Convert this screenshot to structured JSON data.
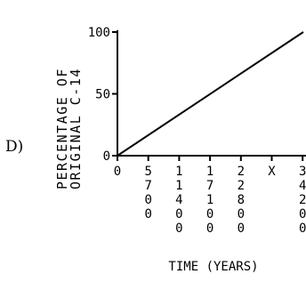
{
  "option_label": "D)",
  "chart_data": {
    "type": "line",
    "title": "",
    "ylabel": [
      "PERCENTAGE OF",
      "ORIGINAL C-14"
    ],
    "xlabel": "TIME (YEARS)",
    "x_tick_labels": [
      "0",
      "5700",
      "11400",
      "17100",
      "22800",
      "X",
      "34200"
    ],
    "y_ticks": [
      0,
      50,
      100
    ],
    "y_tick_labels": [
      "0",
      "50",
      "100"
    ],
    "xlim": [
      0,
      34200
    ],
    "ylim": [
      0,
      100
    ],
    "series": [
      {
        "x": [
          0,
          34200
        ],
        "y": [
          0,
          100
        ]
      }
    ],
    "grid": false,
    "colors": {
      "ink": "#000000",
      "background": "#ffffff"
    }
  }
}
